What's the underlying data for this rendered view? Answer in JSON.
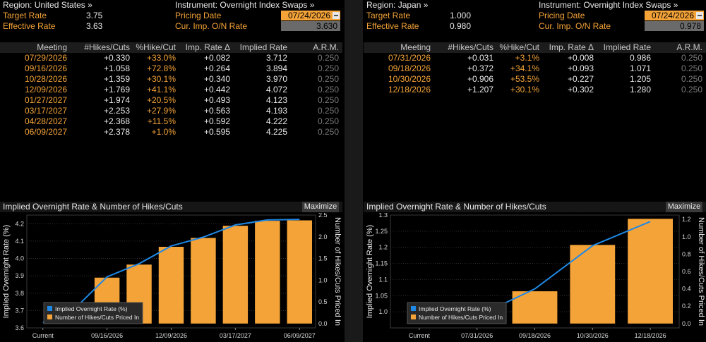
{
  "colors": {
    "accent": "#f4a338",
    "line": "#1e88e5",
    "bar": "#f4a338"
  },
  "us": {
    "region": "Region: United States »",
    "instrument": "Instrument: Overnight Index Swaps »",
    "target_rate_label": "Target Rate",
    "target_rate": "3.75",
    "effective_rate_label": "Effective Rate",
    "effective_rate": "3.63",
    "pricing_date_label": "Pricing Date",
    "pricing_date": "07/24/2026",
    "cur_imp_label": "Cur. Imp. O/N Rate",
    "cur_imp": "3.630",
    "headers": [
      "Meeting",
      "#Hikes/Cuts",
      "%Hike/Cut",
      "Imp. Rate Δ",
      "Implied Rate",
      "A.R.M."
    ],
    "rows": [
      [
        "07/29/2026",
        "+0.330",
        "+33.0%",
        "+0.082",
        "3.712",
        "0.250"
      ],
      [
        "09/16/2026",
        "+1.058",
        "+72.8%",
        "+0.264",
        "3.894",
        "0.250"
      ],
      [
        "10/28/2026",
        "+1.359",
        "+30.1%",
        "+0.340",
        "3.970",
        "0.250"
      ],
      [
        "12/09/2026",
        "+1.769",
        "+41.1%",
        "+0.442",
        "4.072",
        "0.250"
      ],
      [
        "01/27/2027",
        "+1.974",
        "+20.5%",
        "+0.493",
        "4.123",
        "0.250"
      ],
      [
        "03/17/2027",
        "+2.253",
        "+27.9%",
        "+0.563",
        "4.193",
        "0.250"
      ],
      [
        "04/28/2027",
        "+2.368",
        "+11.5%",
        "+0.592",
        "4.222",
        "0.250"
      ],
      [
        "06/09/2027",
        "+2.378",
        "+1.0%",
        "+0.595",
        "4.225",
        "0.250"
      ]
    ],
    "chart_title": "Implied Overnight Rate & Number of Hikes/Cuts",
    "maximize": "Maximize"
  },
  "jp": {
    "region": "Region: Japan »",
    "instrument": "Instrument: Overnight Index Swaps »",
    "target_rate_label": "Target Rate",
    "target_rate": "1.000",
    "effective_rate_label": "Effective Rate",
    "effective_rate": "0.980",
    "pricing_date_label": "Pricing Date",
    "pricing_date": "07/24/2026",
    "cur_imp_label": "Cur. Imp. O/N Rate",
    "cur_imp": "0.978",
    "headers": [
      "Meeting",
      "#Hikes/Cuts",
      "%Hike/Cut",
      "Imp. Rate Δ",
      "Implied Rate",
      "A.R.M."
    ],
    "rows": [
      [
        "07/31/2026",
        "+0.031",
        "+3.1%",
        "+0.008",
        "0.986",
        "0.250"
      ],
      [
        "09/18/2026",
        "+0.372",
        "+34.1%",
        "+0.093",
        "1.071",
        "0.250"
      ],
      [
        "10/30/2026",
        "+0.906",
        "+53.5%",
        "+0.227",
        "1.205",
        "0.250"
      ],
      [
        "12/18/2026",
        "+1.207",
        "+30.1%",
        "+0.302",
        "1.280",
        "0.250"
      ]
    ],
    "chart_title": "Implied Overnight Rate & Number of Hikes/Cuts",
    "maximize": "Maximize"
  },
  "chart_data": [
    {
      "type": "bar",
      "categories": [
        "Current",
        "07/29/2026",
        "09/16/2026",
        "10/28/2026",
        "12/09/2026",
        "01/27/2027",
        "03/17/2027",
        "04/28/2027",
        "06/09/2027"
      ],
      "tick_labels": [
        "Current",
        "09/16/2026",
        "12/09/2026",
        "03/17/2027",
        "06/09/2027"
      ],
      "series": [
        {
          "name": "Implied Overnight Rate (%)",
          "type": "line",
          "axis": "left",
          "values": [
            3.63,
            3.712,
            3.894,
            3.97,
            4.072,
            4.123,
            4.193,
            4.222,
            4.225
          ]
        },
        {
          "name": "Number of Hikes/Cuts Priced In",
          "type": "bar",
          "axis": "right",
          "values": [
            null,
            0.33,
            1.058,
            1.359,
            1.769,
            1.974,
            2.253,
            2.368,
            2.378
          ]
        }
      ],
      "ylabel": "Implied Overnight Rate (%)",
      "y2label": "Number of Hikes/Cuts Priced In",
      "ylim": [
        3.6,
        4.25
      ],
      "y2lim": [
        -0.1,
        2.5
      ],
      "yticks": [
        3.6,
        3.7,
        3.8,
        3.9,
        4.0,
        4.1,
        4.2
      ],
      "y2ticks": [
        0.0,
        0.5,
        1.0,
        1.5,
        2.0,
        2.5
      ],
      "legend_position": "bottom-left"
    },
    {
      "type": "bar",
      "categories": [
        "Current",
        "07/31/2026",
        "09/18/2026",
        "10/30/2026",
        "12/18/2026"
      ],
      "tick_labels": [
        "Current",
        "07/31/2026",
        "09/18/2026",
        "10/30/2026",
        "12/18/2026"
      ],
      "series": [
        {
          "name": "Implied Overnight Rate (%)",
          "type": "line",
          "axis": "left",
          "values": [
            0.978,
            0.986,
            1.071,
            1.205,
            1.28
          ]
        },
        {
          "name": "Number of Hikes/Cuts Priced In",
          "type": "bar",
          "axis": "right",
          "values": [
            null,
            0.031,
            0.372,
            0.906,
            1.207
          ]
        }
      ],
      "ylabel": "Implied Overnight Rate (%)",
      "y2label": "Number of Hikes/Cuts Priced In",
      "ylim": [
        0.95,
        1.3
      ],
      "y2lim": [
        -0.05,
        1.25
      ],
      "yticks": [
        1.0,
        1.05,
        1.1,
        1.15,
        1.2,
        1.25,
        1.3
      ],
      "y2ticks": [
        0.0,
        0.2,
        0.4,
        0.6,
        0.8,
        1.0,
        1.2
      ],
      "legend_position": "bottom-left"
    }
  ]
}
